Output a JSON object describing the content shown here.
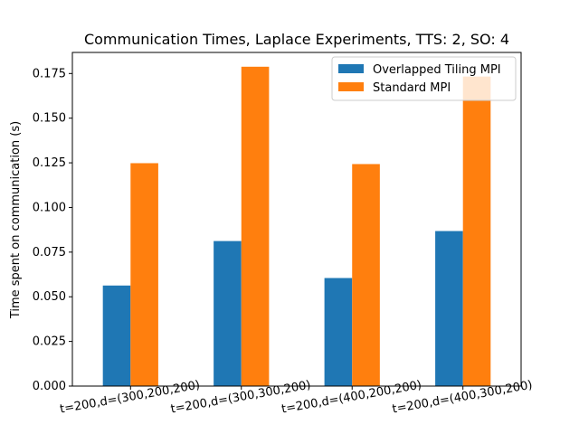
{
  "chart_data": {
    "type": "bar",
    "title": "Communication Times, Laplace Experiments, TTS: 2, SO: 4",
    "xlabel": "",
    "ylabel": "Time spent on communication (s)",
    "categories": [
      "t=200,d=(300,200,200)",
      "t=200,d=(300,300,200)",
      "t=200,d=(400,200,200)",
      "t=200,d=(400,300,200)"
    ],
    "series": [
      {
        "name": "Overlapped Tiling MPI",
        "values": [
          0.0563,
          0.0812,
          0.0605,
          0.0868
        ],
        "color": "#1f77b4"
      },
      {
        "name": "Standard MPI",
        "values": [
          0.1248,
          0.1788,
          0.1243,
          0.1733
        ],
        "color": "#ff7f0e"
      }
    ],
    "ylim": [
      0,
      0.1868
    ],
    "yticks": [
      "0.000",
      "0.025",
      "0.050",
      "0.075",
      "0.100",
      "0.125",
      "0.150",
      "0.175"
    ],
    "grid": false,
    "legend_position": "top-right"
  }
}
